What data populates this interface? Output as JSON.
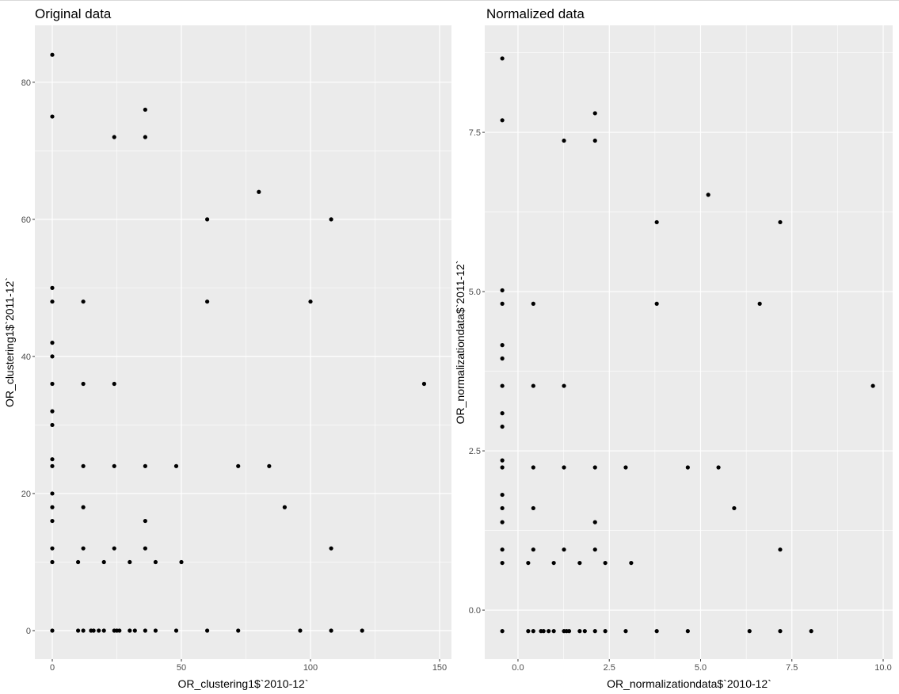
{
  "chart_data": [
    {
      "type": "scatter",
      "title": "Original data",
      "xlabel": "OR_clustering1$`2010-12`",
      "ylabel": "OR_clustering1$`2011-12`",
      "xlim": [
        -6.75,
        154.6
      ],
      "ylim": [
        -4.16,
        88.3
      ],
      "xticks": [
        0,
        50,
        100,
        150
      ],
      "xtick_labels": [
        "0",
        "50",
        "100",
        "150"
      ],
      "yticks": [
        0,
        20,
        40,
        60,
        80
      ],
      "ytick_labels": [
        "0",
        "20",
        "40",
        "60",
        "80"
      ],
      "xminor": [
        25,
        75,
        125
      ],
      "yminor": [
        10,
        30,
        50,
        70
      ],
      "grid": true,
      "points": [
        [
          0,
          84
        ],
        [
          0,
          75
        ],
        [
          0,
          50
        ],
        [
          0,
          48
        ],
        [
          0,
          42
        ],
        [
          0,
          40
        ],
        [
          0,
          36
        ],
        [
          0,
          32
        ],
        [
          0,
          30
        ],
        [
          0,
          25
        ],
        [
          0,
          24
        ],
        [
          0,
          20
        ],
        [
          0,
          18
        ],
        [
          0,
          16
        ],
        [
          0,
          12
        ],
        [
          0,
          10
        ],
        [
          0,
          0
        ],
        [
          10,
          10
        ],
        [
          10,
          0
        ],
        [
          12,
          48
        ],
        [
          12,
          36
        ],
        [
          12,
          24
        ],
        [
          12,
          18
        ],
        [
          12,
          12
        ],
        [
          12,
          0
        ],
        [
          15,
          0
        ],
        [
          16,
          0
        ],
        [
          18,
          0
        ],
        [
          20,
          0
        ],
        [
          20,
          10
        ],
        [
          24,
          72
        ],
        [
          24,
          36
        ],
        [
          24,
          24
        ],
        [
          24,
          12
        ],
        [
          24,
          0
        ],
        [
          25,
          0
        ],
        [
          26,
          0
        ],
        [
          30,
          10
        ],
        [
          30,
          0
        ],
        [
          32,
          0
        ],
        [
          36,
          76
        ],
        [
          36,
          72
        ],
        [
          36,
          24
        ],
        [
          36,
          16
        ],
        [
          36,
          12
        ],
        [
          36,
          0
        ],
        [
          40,
          10
        ],
        [
          40,
          0
        ],
        [
          48,
          24
        ],
        [
          48,
          0
        ],
        [
          50,
          10
        ],
        [
          60,
          60
        ],
        [
          60,
          48
        ],
        [
          60,
          0
        ],
        [
          72,
          24
        ],
        [
          72,
          0
        ],
        [
          80,
          64
        ],
        [
          84,
          24
        ],
        [
          90,
          18
        ],
        [
          96,
          0
        ],
        [
          100,
          48
        ],
        [
          108,
          60
        ],
        [
          108,
          12
        ],
        [
          108,
          0
        ],
        [
          120,
          0
        ],
        [
          144,
          36
        ]
      ]
    },
    {
      "type": "scatter",
      "title": "Normalized data",
      "xlabel": "OR_normalizationdata$`2010-12`",
      "ylabel": "OR_normalizationdata$`2011-12`",
      "xlim": [
        -0.91,
        10.26
      ],
      "ylim": [
        -0.77,
        9.18
      ],
      "xticks": [
        0,
        2.5,
        5,
        7.5,
        10
      ],
      "xtick_labels": [
        "0.0",
        "2.5",
        "5.0",
        "7.5",
        "10.0"
      ],
      "yticks": [
        0,
        2.5,
        5,
        7.5
      ],
      "ytick_labels": [
        "0.0",
        "2.5",
        "5.0",
        "7.5"
      ],
      "xminor": [
        1.25,
        3.75,
        6.25,
        8.75
      ],
      "yminor": [
        1.25,
        3.75,
        6.25,
        8.75
      ],
      "grid": true,
      "points": [
        [
          -0.43,
          8.66
        ],
        [
          -0.43,
          7.69
        ],
        [
          -0.43,
          5.02
        ],
        [
          -0.43,
          4.81
        ],
        [
          -0.43,
          4.16
        ],
        [
          -0.43,
          3.95
        ],
        [
          -0.43,
          3.52
        ],
        [
          -0.43,
          3.09
        ],
        [
          -0.43,
          2.88
        ],
        [
          -0.43,
          2.35
        ],
        [
          -0.43,
          2.24
        ],
        [
          -0.43,
          1.81
        ],
        [
          -0.43,
          1.6
        ],
        [
          -0.43,
          1.38
        ],
        [
          -0.43,
          0.95
        ],
        [
          -0.43,
          0.74
        ],
        [
          -0.43,
          -0.33
        ],
        [
          0.28,
          0.74
        ],
        [
          0.28,
          -0.33
        ],
        [
          0.42,
          4.81
        ],
        [
          0.42,
          3.52
        ],
        [
          0.42,
          2.24
        ],
        [
          0.42,
          1.6
        ],
        [
          0.42,
          0.95
        ],
        [
          0.42,
          -0.33
        ],
        [
          0.63,
          -0.33
        ],
        [
          0.7,
          -0.33
        ],
        [
          0.84,
          -0.33
        ],
        [
          0.98,
          -0.33
        ],
        [
          0.98,
          0.74
        ],
        [
          1.26,
          7.37
        ],
        [
          1.26,
          3.52
        ],
        [
          1.26,
          2.24
        ],
        [
          1.26,
          0.95
        ],
        [
          1.26,
          -0.33
        ],
        [
          1.33,
          -0.33
        ],
        [
          1.4,
          -0.33
        ],
        [
          1.69,
          0.74
        ],
        [
          1.69,
          -0.33
        ],
        [
          1.83,
          -0.33
        ],
        [
          2.11,
          7.8
        ],
        [
          2.11,
          7.37
        ],
        [
          2.11,
          2.24
        ],
        [
          2.11,
          1.38
        ],
        [
          2.11,
          0.95
        ],
        [
          2.11,
          -0.33
        ],
        [
          2.39,
          0.74
        ],
        [
          2.39,
          -0.33
        ],
        [
          2.95,
          2.24
        ],
        [
          2.95,
          -0.33
        ],
        [
          3.1,
          0.74
        ],
        [
          3.8,
          6.09
        ],
        [
          3.8,
          4.81
        ],
        [
          3.8,
          -0.33
        ],
        [
          4.65,
          2.24
        ],
        [
          4.65,
          -0.33
        ],
        [
          5.21,
          6.52
        ],
        [
          5.49,
          2.24
        ],
        [
          5.92,
          1.6
        ],
        [
          6.34,
          -0.33
        ],
        [
          6.62,
          4.81
        ],
        [
          7.18,
          6.09
        ],
        [
          7.18,
          0.95
        ],
        [
          7.18,
          -0.33
        ],
        [
          8.03,
          -0.33
        ],
        [
          9.72,
          3.52
        ]
      ]
    }
  ],
  "colors": {
    "panel": "#EBEBEB",
    "grid": "#FFFFFF",
    "point": "#000000"
  }
}
